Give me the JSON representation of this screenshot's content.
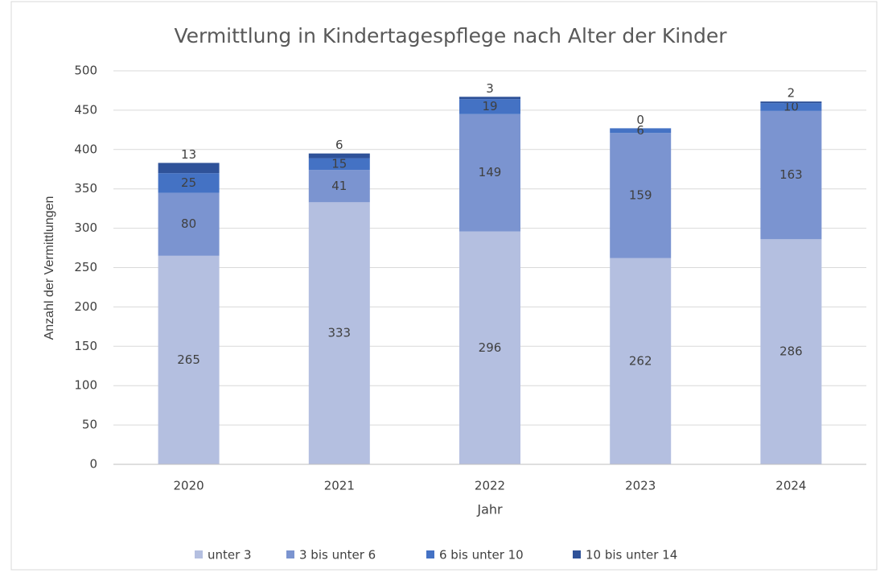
{
  "chart_data": {
    "type": "stacked_bar",
    "title": "Vermittlung in Kindertagespflege nach Alter der Kinder",
    "x_label": "Jahr",
    "y_label": "Anzahl der Vermittlungen",
    "categories": [
      "2020",
      "2021",
      "2022",
      "2023",
      "2024"
    ],
    "series": [
      {
        "name": "unter 3",
        "color": "#b4bfe0",
        "values": [
          265,
          333,
          296,
          262,
          286
        ]
      },
      {
        "name": "3 bis unter 6",
        "color": "#7b94d0",
        "values": [
          80,
          41,
          149,
          159,
          163
        ]
      },
      {
        "name": "6 bis unter 10",
        "color": "#4472c4",
        "values": [
          25,
          15,
          19,
          6,
          10
        ]
      },
      {
        "name": "10 bis unter 14",
        "color": "#2f5299",
        "values": [
          13,
          6,
          3,
          0,
          2
        ]
      }
    ],
    "ylim": [
      0,
      500
    ],
    "yticks": [
      0,
      50,
      100,
      150,
      200,
      250,
      300,
      350,
      400,
      450,
      500
    ],
    "grid": true,
    "legend": "bottom"
  }
}
